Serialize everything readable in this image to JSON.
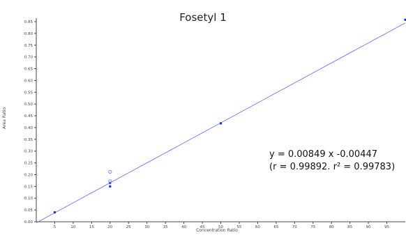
{
  "chart_data": {
    "type": "scatter",
    "title": "Fosetyl 1",
    "xlabel": "Concentration Ratio",
    "ylabel": "Area Ratio",
    "xlim": [
      0,
      100
    ],
    "ylim": [
      0,
      0.87
    ],
    "x_ticks": [
      "5",
      "10",
      "15",
      "20",
      "25",
      "30",
      "35",
      "40",
      "45",
      "50",
      "55",
      "60",
      "65",
      "70",
      "75",
      "80",
      "85",
      "90",
      "95"
    ],
    "y_ticks": [
      "0.00",
      "0.05",
      "0.10",
      "0.15",
      "0.20",
      "0.25",
      "0.30",
      "0.35",
      "0.40",
      "0.45",
      "0.50",
      "0.55",
      "0.60",
      "0.65",
      "0.70",
      "0.75",
      "0.80",
      "0.85"
    ],
    "series": [
      {
        "marker": "filled",
        "color": "#1a2fd6",
        "points": [
          {
            "x": 5,
            "y": 0.04
          },
          {
            "x": 20,
            "y": 0.15
          },
          {
            "x": 20,
            "y": 0.165
          },
          {
            "x": 50,
            "y": 0.418
          },
          {
            "x": 100,
            "y": 0.858
          }
        ]
      },
      {
        "marker": "open",
        "color": "#6b7cf2",
        "points": [
          {
            "x": 20,
            "y": 0.212
          },
          {
            "x": 20,
            "y": 0.172
          }
        ]
      }
    ],
    "regression": {
      "slope": 0.00849,
      "intercept": -0.00447,
      "color": "#5a6ee8",
      "equation": "y = 0.00849 x -0.00447",
      "stats": "(r = 0.99892. r² = 0.99783)"
    },
    "grid": false
  }
}
